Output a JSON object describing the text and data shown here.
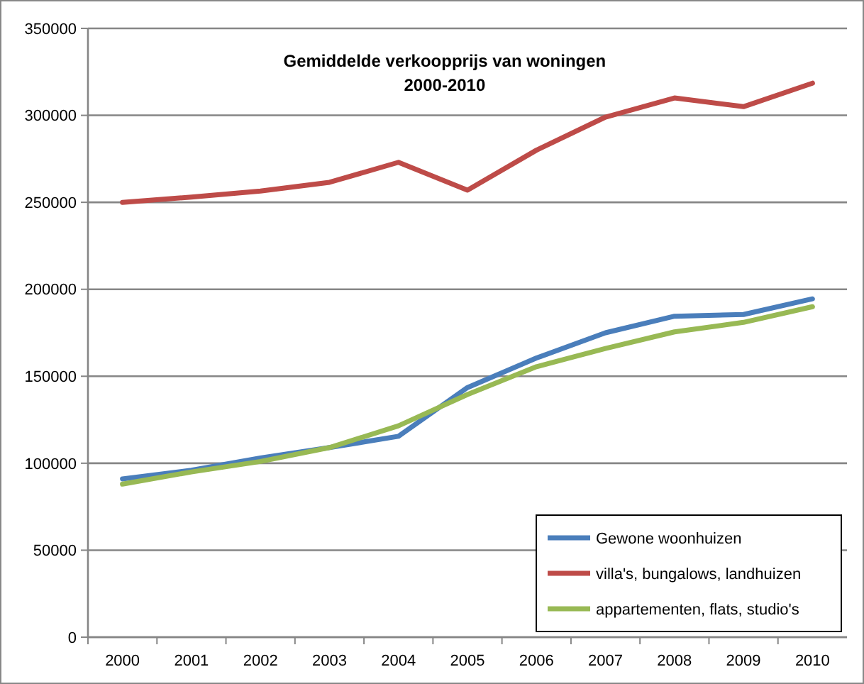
{
  "chart_data": {
    "type": "line",
    "title": "Gemiddelde verkoopprijs van woningen\n2000-2010",
    "categories": [
      "2000",
      "2001",
      "2002",
      "2003",
      "2004",
      "2005",
      "2006",
      "2007",
      "2008",
      "2009",
      "2010"
    ],
    "series": [
      {
        "name": "Gewone woonhuizen",
        "color": "#4a7ebb",
        "values": [
          91000,
          96000,
          103000,
          109000,
          115500,
          143500,
          160500,
          175000,
          184500,
          185500,
          194500
        ]
      },
      {
        "name": "villa's, bungalows, landhuizen",
        "color": "#be4b48",
        "values": [
          250000,
          253000,
          256500,
          261500,
          273000,
          257000,
          280000,
          299000,
          310000,
          305000,
          318500
        ]
      },
      {
        "name": "appartementen, flats, studio's",
        "color": "#98b954",
        "values": [
          88000,
          95000,
          101000,
          109000,
          121500,
          139500,
          155500,
          166000,
          175500,
          181000,
          190000
        ]
      }
    ],
    "ylim": [
      0,
      350000
    ],
    "yticks": [
      0,
      50000,
      100000,
      150000,
      200000,
      250000,
      300000,
      350000
    ],
    "grid": "y",
    "legend": "bottom right",
    "marker": "none",
    "line_style": "solid"
  }
}
